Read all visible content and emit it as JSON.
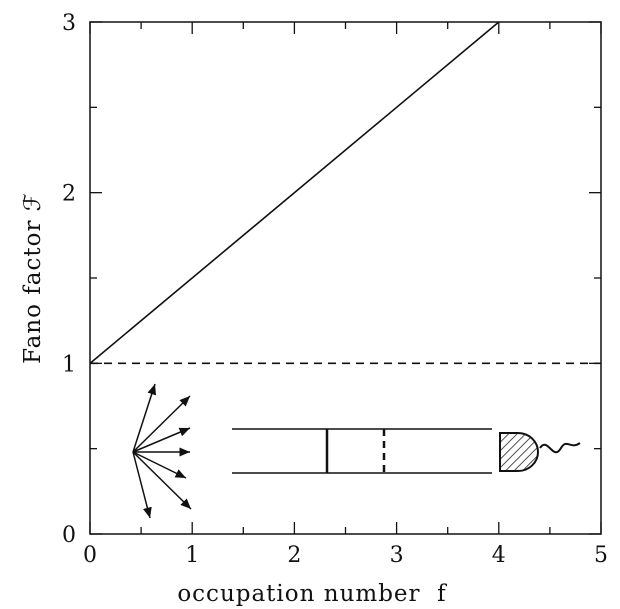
{
  "chart_data": {
    "type": "line",
    "title": "",
    "xlabel": "occupation number  f",
    "ylabel": "Fano factor ℱ",
    "xlim": [
      0,
      5
    ],
    "ylim": [
      0,
      3
    ],
    "xticks": [
      "0",
      "1",
      "2",
      "3",
      "4",
      "5"
    ],
    "yticks": [
      "0",
      "1",
      "2",
      "3"
    ],
    "grid": false,
    "series": [
      {
        "style": "solid",
        "x": [
          0,
          4
        ],
        "y": [
          1,
          3
        ]
      },
      {
        "style": "dashed",
        "x": [
          0,
          5
        ],
        "y": [
          1,
          1
        ]
      }
    ],
    "inset": "schematic: radiation source emitting arrows, cavity/tube with solid and dashed barriers, hatched detector with wavy output line"
  }
}
